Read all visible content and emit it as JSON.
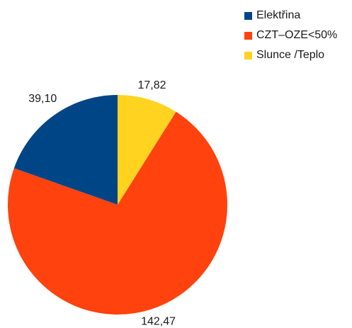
{
  "chart_data": {
    "type": "pie",
    "categories": [
      "Elektřina",
      "CZT–OZE<50%",
      "Slunce /Teplo"
    ],
    "values": [
      39.1,
      142.47,
      17.82
    ],
    "value_labels": [
      "39,10",
      "142,47",
      "17,82"
    ],
    "colors": [
      "#004586",
      "#ff420e",
      "#ffd320"
    ],
    "start_angle_deg": 0,
    "direction": "counterclockwise",
    "legend": "top-right"
  }
}
